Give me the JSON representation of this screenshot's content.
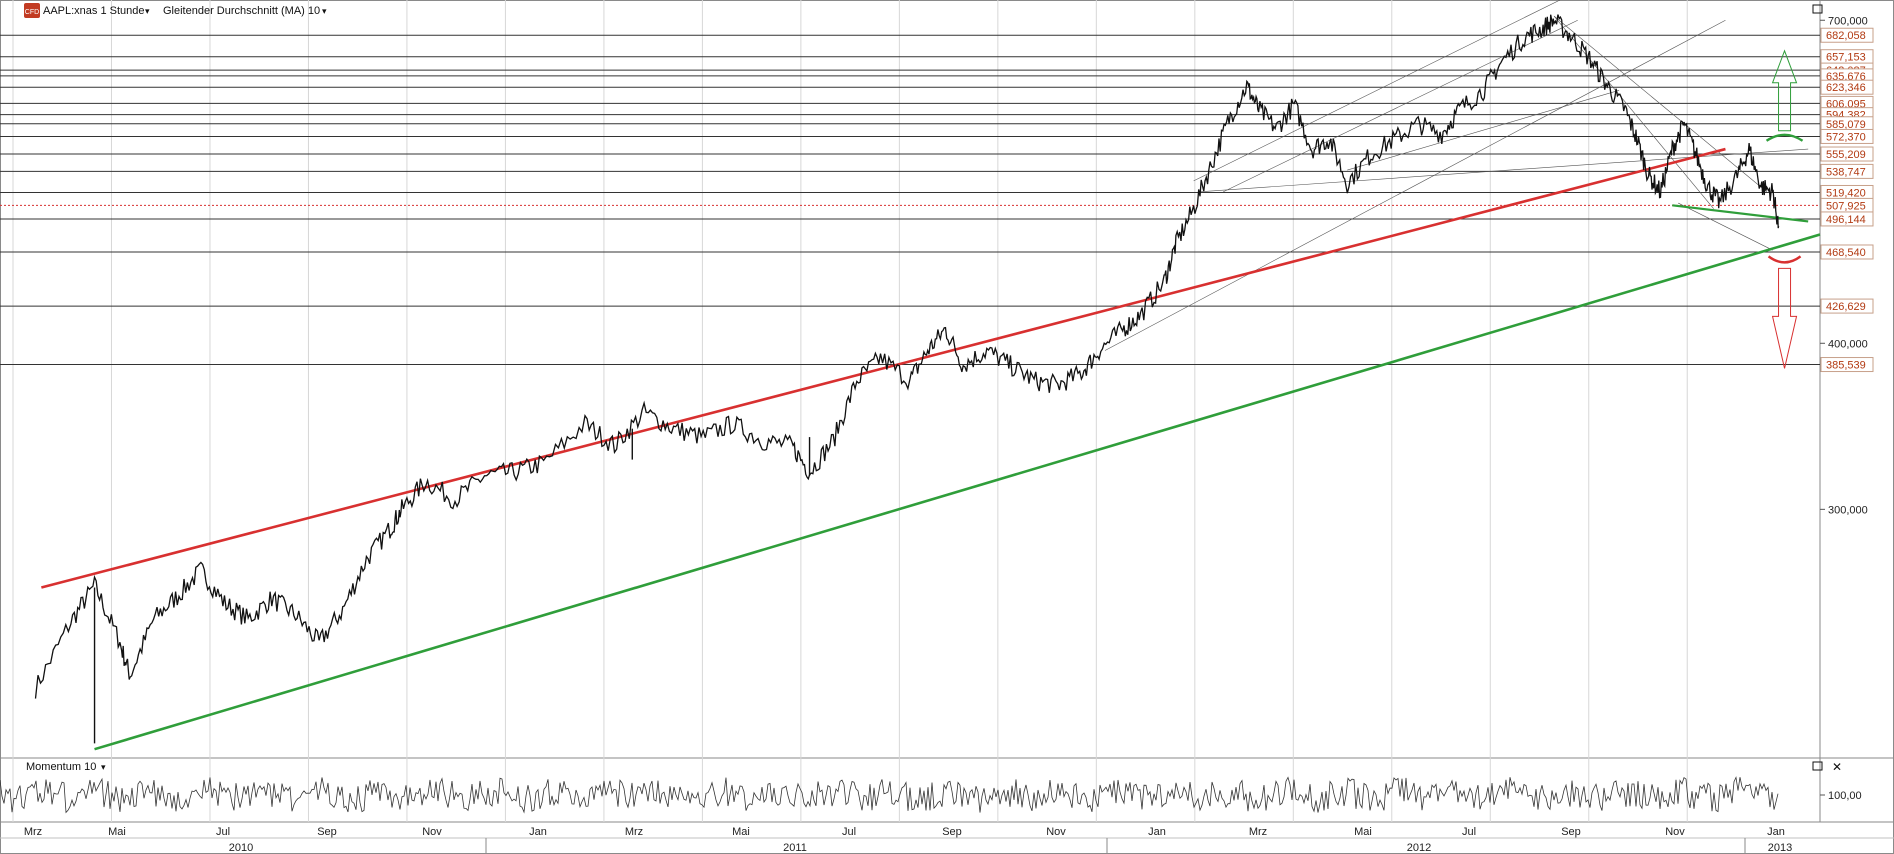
{
  "header": {
    "symbol_label": "AAPL:xnas 1 Stunde",
    "indicator_label": "Gleitender Durchschnitt (MA) 10",
    "badge": "CFD"
  },
  "panel": {
    "momentum_label": "Momentum 10"
  },
  "colors": {
    "upper_trend": "#d83030",
    "lower_trend": "#2f9e3a",
    "price": "#111111",
    "level_line": "#333333",
    "current_line": "#d83030",
    "level_label": "#b23a12",
    "grid": "#d7d7d7"
  },
  "chart_data": {
    "type": "line",
    "title": "",
    "y_scale": "log",
    "ylim": [
      195,
      725
    ],
    "y_ticks": [
      "700,000",
      "400,000",
      "300,000"
    ],
    "horizontal_levels": [
      {
        "value": 682.058,
        "label": "682,058"
      },
      {
        "value": 657.153,
        "label": "657,153"
      },
      {
        "value": 642.087,
        "label": "642,087"
      },
      {
        "value": 635.676,
        "label": "635,676"
      },
      {
        "value": 623.346,
        "label": "623,346"
      },
      {
        "value": 606.095,
        "label": "606,095"
      },
      {
        "value": 594.382,
        "label": "594,382"
      },
      {
        "value": 585.079,
        "label": "585,079"
      },
      {
        "value": 572.37,
        "label": "572,370"
      },
      {
        "value": 555.209,
        "label": "555,209"
      },
      {
        "value": 538.747,
        "label": "538,747"
      },
      {
        "value": 519.42,
        "label": "519,420"
      },
      {
        "value": 507.925,
        "label": "507,925"
      },
      {
        "value": 496.144,
        "label": "496,144"
      },
      {
        "value": 468.54,
        "label": "468,540"
      },
      {
        "value": 426.629,
        "label": "426,629"
      },
      {
        "value": 385.539,
        "label": "385,539"
      }
    ],
    "current_price": 507.925,
    "x_months": [
      "Mrz",
      "Mai",
      "Jul",
      "Sep",
      "Nov",
      "Jan",
      "Mrz",
      "Mai",
      "Jul",
      "Sep",
      "Nov",
      "Jan",
      "Mrz",
      "Mai",
      "Jul",
      "Sep",
      "Nov",
      "Jan"
    ],
    "x_years": [
      "2010",
      "2011",
      "2012",
      "2013"
    ],
    "series": [
      {
        "values": [
          [
            2010.12,
            220
          ],
          [
            2010.18,
            247
          ],
          [
            2010.22,
            263
          ],
          [
            2010.26,
            240
          ],
          [
            2010.28,
            225
          ],
          [
            2010.32,
            248
          ],
          [
            2010.36,
            258
          ],
          [
            2010.4,
            270
          ],
          [
            2010.44,
            255
          ],
          [
            2010.48,
            248
          ],
          [
            2010.52,
            257
          ],
          [
            2010.56,
            250
          ],
          [
            2010.6,
            238
          ],
          [
            2010.64,
            252
          ],
          [
            2010.68,
            275
          ],
          [
            2010.72,
            290
          ],
          [
            2010.74,
            300
          ],
          [
            2010.78,
            315
          ],
          [
            2010.83,
            305
          ],
          [
            2010.88,
            318
          ],
          [
            2010.93,
            320
          ],
          [
            2010.98,
            325
          ],
          [
            2011.05,
            348
          ],
          [
            2011.1,
            335
          ],
          [
            2011.15,
            355
          ],
          [
            2011.2,
            345
          ],
          [
            2011.25,
            340
          ],
          [
            2011.3,
            348
          ],
          [
            2011.35,
            338
          ],
          [
            2011.4,
            335
          ],
          [
            2011.43,
            320
          ],
          [
            2011.47,
            338
          ],
          [
            2011.51,
            375
          ],
          [
            2011.55,
            390
          ],
          [
            2011.6,
            375
          ],
          [
            2011.63,
            395
          ],
          [
            2011.66,
            410
          ],
          [
            2011.69,
            385
          ],
          [
            2011.73,
            395
          ],
          [
            2011.77,
            385
          ],
          [
            2011.81,
            375
          ],
          [
            2011.85,
            372
          ],
          [
            2011.89,
            380
          ],
          [
            2011.92,
            395
          ],
          [
            2011.96,
            410
          ],
          [
            2011.99,
            420
          ],
          [
            2012.03,
            445
          ],
          [
            2012.05,
            475
          ],
          [
            2012.08,
            505
          ],
          [
            2012.11,
            545
          ],
          [
            2012.14,
            590
          ],
          [
            2012.17,
            625
          ],
          [
            2012.19,
            600
          ],
          [
            2012.22,
            580
          ],
          [
            2012.25,
            605
          ],
          [
            2012.28,
            560
          ],
          [
            2012.31,
            570
          ],
          [
            2012.34,
            528
          ],
          [
            2012.38,
            555
          ],
          [
            2012.42,
            570
          ],
          [
            2012.46,
            585
          ],
          [
            2012.5,
            575
          ],
          [
            2012.53,
            600
          ],
          [
            2012.57,
            620
          ],
          [
            2012.6,
            650
          ],
          [
            2012.64,
            680
          ],
          [
            2012.67,
            690
          ],
          [
            2012.69,
            700
          ],
          [
            2012.72,
            680
          ],
          [
            2012.75,
            655
          ],
          [
            2012.78,
            625
          ],
          [
            2012.81,
            600
          ],
          [
            2012.83,
            570
          ],
          [
            2012.85,
            535
          ],
          [
            2012.87,
            520
          ],
          [
            2012.89,
            560
          ],
          [
            2012.91,
            585
          ],
          [
            2012.93,
            555
          ],
          [
            2012.95,
            525
          ],
          [
            2012.97,
            510
          ],
          [
            2013.0,
            535
          ],
          [
            2013.02,
            560
          ],
          [
            2013.04,
            525
          ],
          [
            2013.06,
            520
          ],
          [
            2013.07,
            490
          ]
        ]
      }
    ],
    "trendlines": [
      {
        "name": "upper",
        "from": [
          2010.13,
          262
        ],
        "to": [
          2012.98,
          560
        ]
      },
      {
        "name": "lower",
        "from": [
          2010.22,
          198
        ],
        "to": [
          2013.14,
          483
        ]
      }
    ],
    "annotations": [
      {
        "type": "arrow-up",
        "at": [
          2013.08,
          578
        ]
      },
      {
        "type": "arrow-down",
        "at": [
          2013.08,
          465
        ]
      }
    ],
    "momentum": {
      "ylabel_tick": "100,00"
    }
  }
}
